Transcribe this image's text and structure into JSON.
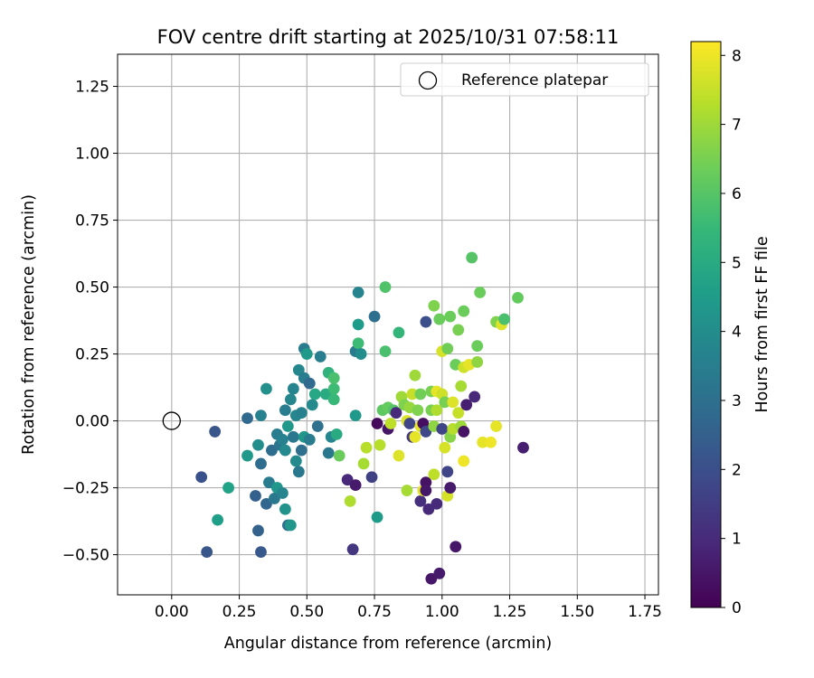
{
  "chart_data": {
    "type": "scatter",
    "title": "FOV centre drift starting at 2025/10/31 07:58:11",
    "xlabel": "Angular distance from reference (arcmin)",
    "ylabel": "Rotation from reference (arcmin)",
    "xlim": [
      -0.2,
      1.8
    ],
    "ylim": [
      -0.65,
      1.37
    ],
    "xticks": [
      0.0,
      0.25,
      0.5,
      0.75,
      1.0,
      1.25,
      1.5,
      1.75
    ],
    "xtick_labels": [
      "0.00",
      "0.25",
      "0.50",
      "0.75",
      "1.00",
      "1.25",
      "1.50",
      "1.75"
    ],
    "yticks": [
      -0.5,
      -0.25,
      0.0,
      0.25,
      0.5,
      0.75,
      1.0,
      1.25
    ],
    "ytick_labels": [
      "−0.50",
      "−0.25",
      "0.00",
      "0.25",
      "0.50",
      "0.75",
      "1.00",
      "1.25"
    ],
    "grid": true,
    "legend": {
      "position": "top-right",
      "label": "Reference platepar"
    },
    "reference_point": {
      "x": 0.0,
      "y": 0.0
    },
    "colorbar": {
      "label": "Hours from first FF file",
      "min": 0.0,
      "max": 8.2,
      "ticks": [
        0,
        1,
        2,
        3,
        4,
        5,
        6,
        7,
        8
      ],
      "tick_labels": [
        "0",
        "1",
        "2",
        "3",
        "4",
        "5",
        "6",
        "7",
        "8"
      ],
      "colormap": "viridis",
      "stops": [
        "#440154",
        "#482878",
        "#3e4989",
        "#31688e",
        "#26828e",
        "#1f9e89",
        "#35b779",
        "#6ece58",
        "#b5de2b",
        "#fde725"
      ]
    },
    "points": [
      [
        0.11,
        -0.21,
        2.1
      ],
      [
        0.13,
        -0.49,
        2.2
      ],
      [
        0.16,
        -0.04,
        2.2
      ],
      [
        0.17,
        -0.37,
        4.6
      ],
      [
        0.21,
        -0.25,
        4.7
      ],
      [
        0.28,
        0.01,
        2.8
      ],
      [
        0.28,
        -0.13,
        4.4
      ],
      [
        0.31,
        -0.28,
        2.5
      ],
      [
        0.32,
        -0.09,
        4.0
      ],
      [
        0.32,
        -0.41,
        2.6
      ],
      [
        0.33,
        0.02,
        3.6
      ],
      [
        0.33,
        -0.16,
        2.9
      ],
      [
        0.33,
        -0.49,
        2.3
      ],
      [
        0.35,
        -0.31,
        2.7
      ],
      [
        0.35,
        0.12,
        4.1
      ],
      [
        0.36,
        -0.23,
        3.4
      ],
      [
        0.37,
        -0.11,
        2.9
      ],
      [
        0.38,
        -0.29,
        3.3
      ],
      [
        0.39,
        -0.05,
        3.5
      ],
      [
        0.39,
        -0.25,
        4.3
      ],
      [
        0.4,
        -0.09,
        3.2
      ],
      [
        0.41,
        -0.07,
        3.6
      ],
      [
        0.41,
        -0.27,
        3.7
      ],
      [
        0.42,
        -0.11,
        3.9
      ],
      [
        0.42,
        0.04,
        3.5
      ],
      [
        0.42,
        -0.33,
        4.2
      ],
      [
        0.43,
        -0.39,
        3.0
      ],
      [
        0.43,
        -0.02,
        4.4
      ],
      [
        0.44,
        0.08,
        3.8
      ],
      [
        0.44,
        -0.39,
        4.3
      ],
      [
        0.45,
        0.12,
        3.7
      ],
      [
        0.45,
        -0.06,
        3.3
      ],
      [
        0.46,
        -0.15,
        3.9
      ],
      [
        0.46,
        0.02,
        3.8
      ],
      [
        0.47,
        -0.19,
        3.3
      ],
      [
        0.47,
        0.19,
        3.8
      ],
      [
        0.48,
        -0.11,
        3.0
      ],
      [
        0.48,
        0.03,
        3.6
      ],
      [
        0.49,
        0.27,
        3.4
      ],
      [
        0.49,
        -0.06,
        4.3
      ],
      [
        0.49,
        0.16,
        3.5
      ],
      [
        0.5,
        0.25,
        4.4
      ],
      [
        0.51,
        -0.07,
        3.4
      ],
      [
        0.51,
        0.14,
        2.8
      ],
      [
        0.52,
        0.06,
        3.9
      ],
      [
        0.53,
        0.1,
        4.9
      ],
      [
        0.54,
        -0.02,
        3.0
      ],
      [
        0.55,
        0.24,
        3.5
      ],
      [
        0.57,
        0.1,
        5.0
      ],
      [
        0.58,
        -0.12,
        3.3
      ],
      [
        0.58,
        0.18,
        5.3
      ],
      [
        0.59,
        -0.06,
        3.8
      ],
      [
        0.6,
        0.12,
        5.6
      ],
      [
        0.6,
        0.16,
        5.8
      ],
      [
        0.6,
        0.08,
        5.5
      ],
      [
        0.61,
        -0.05,
        5.0
      ],
      [
        0.62,
        -0.13,
        6.3
      ],
      [
        0.65,
        -0.22,
        0.9
      ],
      [
        0.66,
        -0.3,
        7.2
      ],
      [
        0.67,
        -0.48,
        1.3
      ],
      [
        0.68,
        0.26,
        3.4
      ],
      [
        0.68,
        0.02,
        4.4
      ],
      [
        0.68,
        -0.24,
        0.6
      ],
      [
        0.69,
        0.36,
        4.5
      ],
      [
        0.69,
        0.48,
        3.7
      ],
      [
        0.69,
        0.29,
        5.6
      ],
      [
        0.7,
        0.25,
        4.0
      ],
      [
        0.71,
        -0.16,
        7.1
      ],
      [
        0.72,
        -0.1,
        7.3
      ],
      [
        0.74,
        -0.21,
        1.6
      ],
      [
        0.75,
        0.39,
        3.0
      ],
      [
        0.76,
        -0.36,
        4.5
      ],
      [
        0.76,
        -0.01,
        0.2
      ],
      [
        0.77,
        -0.09,
        7.3
      ],
      [
        0.78,
        0.04,
        6.1
      ],
      [
        0.79,
        0.26,
        5.8
      ],
      [
        0.79,
        0.5,
        5.9
      ],
      [
        0.8,
        0.05,
        6.2
      ],
      [
        0.8,
        -0.03,
        0.5
      ],
      [
        0.81,
        -0.01,
        7.4
      ],
      [
        0.82,
        0.04,
        6.0
      ],
      [
        0.83,
        0.03,
        1.0
      ],
      [
        0.84,
        0.33,
        5.4
      ],
      [
        0.84,
        -0.13,
        7.8
      ],
      [
        0.85,
        0.09,
        7.0
      ],
      [
        0.86,
        0.06,
        6.6
      ],
      [
        0.87,
        -0.26,
        7.1
      ],
      [
        0.87,
        0.0,
        7.8
      ],
      [
        0.88,
        -0.01,
        1.7
      ],
      [
        0.88,
        0.05,
        6.9
      ],
      [
        0.89,
        -0.06,
        1.4
      ],
      [
        0.89,
        0.1,
        7.5
      ],
      [
        0.9,
        0.17,
        7.0
      ],
      [
        0.9,
        -0.06,
        7.9
      ],
      [
        0.91,
        0.04,
        6.6
      ],
      [
        0.92,
        -0.02,
        7.9
      ],
      [
        0.92,
        0.1,
        6.4
      ],
      [
        0.92,
        -0.3,
        1.1
      ],
      [
        0.93,
        -0.01,
        0.3
      ],
      [
        0.93,
        -0.26,
        7.9
      ],
      [
        0.94,
        -0.04,
        1.8
      ],
      [
        0.94,
        0.37,
        2.0
      ],
      [
        0.94,
        -0.23,
        0.4
      ],
      [
        0.94,
        -0.26,
        0.5
      ],
      [
        0.95,
        -0.33,
        1.0
      ],
      [
        0.96,
        0.11,
        6.5
      ],
      [
        0.96,
        -0.59,
        0.5
      ],
      [
        0.96,
        0.04,
        6.5
      ],
      [
        0.97,
        0.43,
        6.6
      ],
      [
        0.97,
        -0.02,
        6.8
      ],
      [
        0.97,
        -0.2,
        7.4
      ],
      [
        0.98,
        0.11,
        7.9
      ],
      [
        0.98,
        0.04,
        7.2
      ],
      [
        0.98,
        -0.31,
        1.0
      ],
      [
        0.99,
        -0.57,
        0.6
      ],
      [
        0.99,
        0.38,
        6.3
      ],
      [
        1.0,
        0.26,
        7.7
      ],
      [
        1.0,
        0.1,
        7.6
      ],
      [
        1.0,
        -0.03,
        1.7
      ],
      [
        1.01,
        -0.1,
        7.7
      ],
      [
        1.01,
        0.07,
        6.5
      ],
      [
        1.02,
        -0.28,
        7.7
      ],
      [
        1.02,
        -0.19,
        1.7
      ],
      [
        1.02,
        0.27,
        6.4
      ],
      [
        1.03,
        0.39,
        6.3
      ],
      [
        1.03,
        -0.25,
        0.6
      ],
      [
        1.03,
        -0.06,
        6.7
      ],
      [
        1.04,
        0.07,
        7.8
      ],
      [
        1.04,
        -0.03,
        7.3
      ],
      [
        1.05,
        -0.47,
        0.5
      ],
      [
        1.05,
        0.21,
        6.3
      ],
      [
        1.06,
        0.03,
        7.5
      ],
      [
        1.06,
        0.34,
        6.5
      ],
      [
        1.07,
        -0.02,
        7.0
      ],
      [
        1.07,
        0.13,
        7.1
      ],
      [
        1.08,
        0.41,
        6.3
      ],
      [
        1.08,
        0.2,
        7.6
      ],
      [
        1.08,
        -0.04,
        0.4
      ],
      [
        1.08,
        -0.15,
        8.0
      ],
      [
        1.09,
        0.06,
        0.7
      ],
      [
        1.1,
        0.21,
        7.9
      ],
      [
        1.11,
        0.61,
        6.0
      ],
      [
        1.12,
        0.09,
        0.9
      ],
      [
        1.13,
        0.28,
        6.3
      ],
      [
        1.13,
        0.22,
        6.8
      ],
      [
        1.14,
        0.48,
        6.3
      ],
      [
        1.15,
        -0.08,
        7.9
      ],
      [
        1.18,
        -0.08,
        8.0
      ],
      [
        1.2,
        -0.02,
        7.9
      ],
      [
        1.2,
        0.37,
        6.6
      ],
      [
        1.22,
        0.36,
        7.8
      ],
      [
        1.23,
        0.38,
        5.8
      ],
      [
        1.28,
        0.46,
        6.2
      ],
      [
        1.3,
        -0.1,
        0.7
      ]
    ]
  }
}
